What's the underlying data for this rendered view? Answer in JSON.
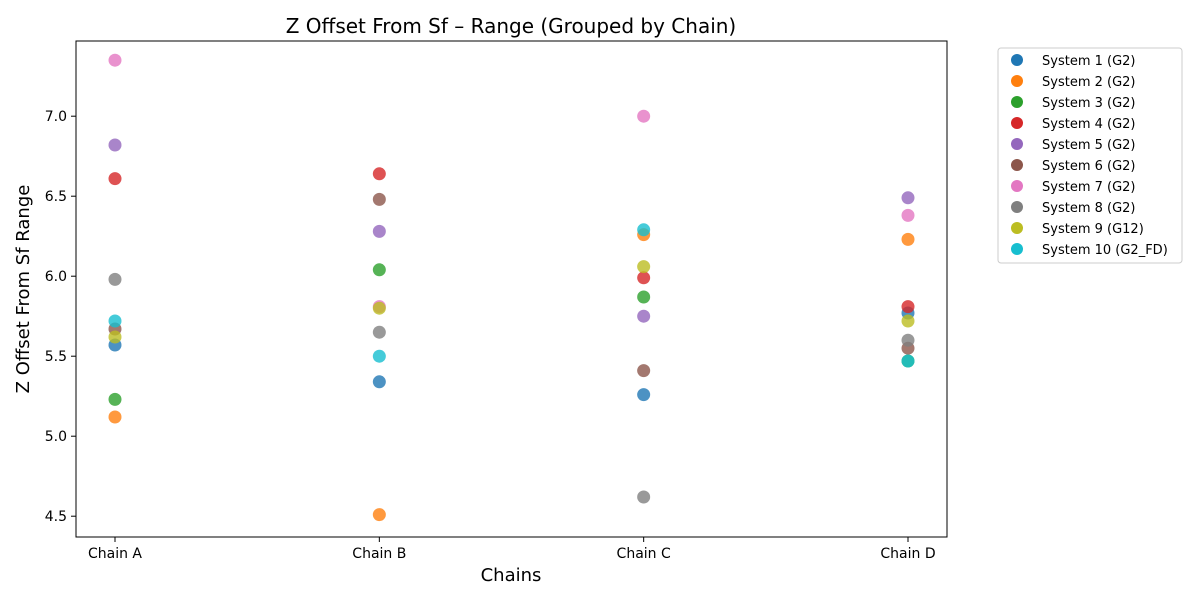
{
  "chart_data": {
    "type": "scatter",
    "title": "Z Offset From Sf – Range (Grouped by Chain)",
    "xlabel": "Chains",
    "ylabel": "Z Offset From Sf Range",
    "categories": [
      "Chain A",
      "Chain B",
      "Chain C",
      "Chain D"
    ],
    "ylim": [
      4.37,
      7.47
    ],
    "yticks": [
      "4.5",
      "5.0",
      "5.5",
      "6.0",
      "6.5",
      "7.0"
    ],
    "grid": false,
    "legend_position": "outside-right",
    "series": [
      {
        "name": "System 1 (G2)",
        "color": "#1f77b4",
        "values": [
          5.57,
          5.34,
          5.26,
          5.77
        ]
      },
      {
        "name": "System 2 (G2)",
        "color": "#ff7f0e",
        "values": [
          5.12,
          4.51,
          6.26,
          6.23
        ]
      },
      {
        "name": "System 3 (G2)",
        "color": "#2ca02c",
        "values": [
          5.23,
          6.04,
          5.87,
          5.47
        ]
      },
      {
        "name": "System 4 (G2)",
        "color": "#d62728",
        "values": [
          6.61,
          6.64,
          5.99,
          5.81
        ]
      },
      {
        "name": "System 5 (G2)",
        "color": "#9467bd",
        "values": [
          6.82,
          6.28,
          5.75,
          6.49
        ]
      },
      {
        "name": "System 6 (G2)",
        "color": "#8c564b",
        "values": [
          5.67,
          6.48,
          5.41,
          5.55
        ]
      },
      {
        "name": "System 7 (G2)",
        "color": "#e377c2",
        "values": [
          7.35,
          5.81,
          7.0,
          6.38
        ]
      },
      {
        "name": "System 8 (G2)",
        "color": "#7f7f7f",
        "values": [
          5.98,
          5.65,
          4.62,
          5.6
        ]
      },
      {
        "name": "System 9 (G12)",
        "color": "#bcbd22",
        "values": [
          5.62,
          5.8,
          6.06,
          5.72
        ]
      },
      {
        "name": "System 10 (G2_FD)",
        "color": "#17becf",
        "values": [
          5.72,
          5.5,
          6.29,
          5.47
        ]
      }
    ]
  }
}
